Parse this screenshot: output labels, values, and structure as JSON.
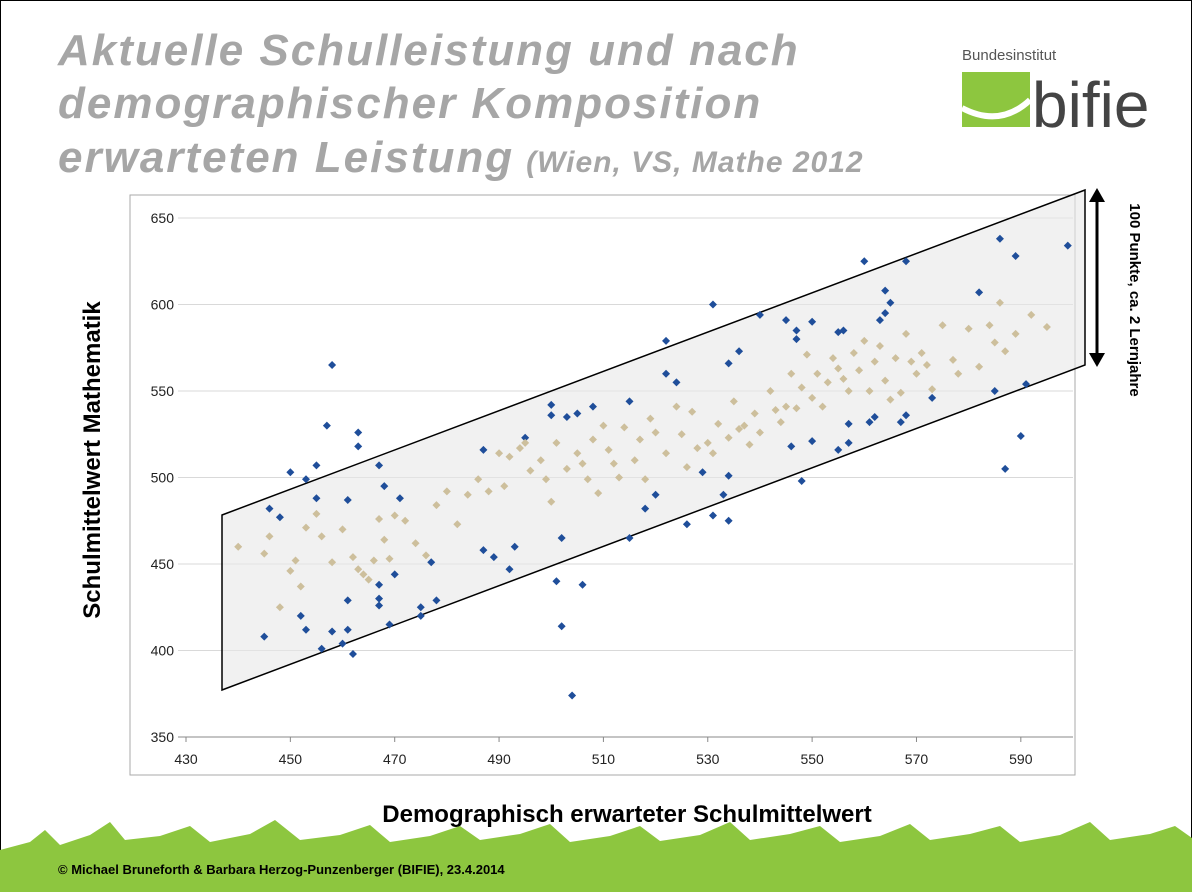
{
  "chart_data": {
    "type": "scatter",
    "title": [
      "Aktuelle Schulleistung und nach",
      "demographischer Komposition",
      "erwarteten Leistung"
    ],
    "subtitle": "(Wien, VS, Mathe 2012",
    "x_label": "Demographisch erwarteter Schulmittelwert",
    "y_label": "Schulmittelwert Mathematik",
    "annotation": "100 Punkte, ca. 2 Lernjahre",
    "xlim": [
      430,
      600
    ],
    "xticks": [
      430,
      450,
      470,
      490,
      510,
      530,
      550,
      570,
      590
    ],
    "ylim": [
      350,
      650
    ],
    "yticks": [
      350,
      400,
      450,
      500,
      550,
      600,
      650
    ],
    "grid": true,
    "series": [
      {
        "color": "#1f4e9a",
        "x": [
          445,
          446,
          448,
          450,
          452,
          453,
          453,
          455,
          455,
          456,
          457,
          458,
          458,
          460,
          461,
          461,
          461,
          462,
          463,
          463,
          467,
          467,
          467,
          467,
          468,
          469,
          470,
          471,
          475,
          475,
          477,
          478,
          487,
          487,
          489,
          492,
          493,
          495,
          500,
          500,
          501,
          502,
          502,
          503,
          504,
          505,
          506,
          508,
          515,
          515,
          518,
          520,
          522,
          522,
          524,
          526,
          529,
          531,
          531,
          533,
          534,
          534,
          534,
          536,
          540,
          545,
          546,
          547,
          547,
          548,
          550,
          550,
          555,
          555,
          556,
          557,
          557,
          560,
          561,
          562,
          563,
          564,
          564,
          565,
          567,
          568,
          568,
          573,
          582,
          585,
          586,
          587,
          589,
          590,
          591,
          599
        ],
        "values": [
          408,
          482,
          477,
          503,
          420,
          412,
          499,
          507,
          488,
          401,
          530,
          565,
          411,
          404,
          487,
          412,
          429,
          398,
          526,
          518,
          430,
          426,
          438,
          507,
          495,
          415,
          444,
          488,
          420,
          425,
          451,
          429,
          458,
          516,
          454,
          447,
          460,
          523,
          536,
          542,
          440,
          465,
          414,
          535,
          374,
          537,
          438,
          541,
          544,
          465,
          482,
          490,
          579,
          560,
          555,
          473,
          503,
          600,
          478,
          490,
          566,
          475,
          501,
          573,
          594,
          591,
          518,
          585,
          580,
          498,
          590,
          521,
          584,
          516,
          585,
          531,
          520,
          625,
          532,
          535,
          591,
          608,
          595,
          601,
          532,
          536,
          625,
          546,
          607,
          550,
          638,
          505,
          628,
          524,
          554,
          634
        ]
      },
      {
        "color": "#cdbf9c",
        "x": [
          440,
          445,
          446,
          448,
          450,
          451,
          452,
          453,
          455,
          456,
          458,
          460,
          462,
          463,
          464,
          465,
          466,
          467,
          468,
          469,
          470,
          472,
          474,
          476,
          478,
          480,
          482,
          484,
          486,
          488,
          490,
          491,
          492,
          494,
          495,
          496,
          498,
          499,
          500,
          501,
          503,
          505,
          506,
          507,
          508,
          509,
          510,
          511,
          512,
          513,
          514,
          516,
          517,
          518,
          519,
          520,
          522,
          524,
          525,
          526,
          527,
          528,
          530,
          531,
          532,
          534,
          535,
          536,
          537,
          538,
          539,
          540,
          542,
          543,
          544,
          545,
          546,
          547,
          548,
          549,
          550,
          551,
          552,
          553,
          554,
          555,
          556,
          557,
          558,
          559,
          560,
          561,
          562,
          563,
          564,
          565,
          566,
          567,
          568,
          569,
          570,
          571,
          572,
          573,
          575,
          577,
          578,
          580,
          582,
          584,
          585,
          586,
          587,
          589,
          592,
          595
        ],
        "values": [
          460,
          456,
          466,
          425,
          446,
          452,
          437,
          471,
          479,
          466,
          451,
          470,
          454,
          447,
          444,
          441,
          452,
          476,
          464,
          453,
          478,
          475,
          462,
          455,
          484,
          492,
          473,
          490,
          499,
          492,
          514,
          495,
          512,
          517,
          520,
          504,
          510,
          499,
          486,
          520,
          505,
          514,
          508,
          499,
          522,
          491,
          530,
          516,
          508,
          500,
          529,
          510,
          522,
          499,
          534,
          526,
          514,
          541,
          525,
          506,
          538,
          517,
          520,
          514,
          531,
          523,
          544,
          528,
          530,
          519,
          537,
          526,
          550,
          539,
          532,
          541,
          560,
          540,
          552,
          571,
          546,
          560,
          541,
          555,
          569,
          563,
          557,
          550,
          572,
          562,
          579,
          550,
          567,
          576,
          556,
          545,
          569,
          549,
          583,
          567,
          560,
          572,
          565,
          551,
          588,
          568,
          560,
          586,
          564,
          588,
          578,
          601,
          573,
          583,
          594,
          587
        ]
      }
    ]
  },
  "logo": {
    "small": "Bundesinstitut",
    "large": "bifie"
  },
  "footer": "© Michael Bruneforth & Barbara Herzog-Punzenberger (BIFIE), 23.4.2014"
}
